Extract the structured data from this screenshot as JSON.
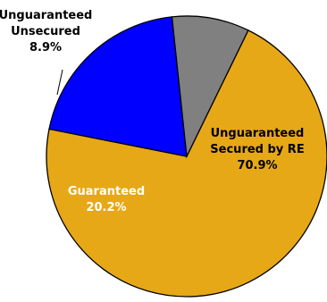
{
  "chart_data": {
    "type": "pie",
    "title": "",
    "slices": [
      {
        "label_lines": [
          "Unguaranteed",
          "Secured by RE"
        ],
        "value": 70.9,
        "value_label": "70.9%",
        "color": "#e6a817",
        "text_color": "#000000"
      },
      {
        "label_lines": [
          "Guaranteed"
        ],
        "value": 20.2,
        "value_label": "20.2%",
        "color": "#0000ff",
        "text_color": "#ffffff"
      },
      {
        "label_lines": [
          "Unguaranteed",
          "Unsecured"
        ],
        "value": 8.9,
        "value_label": "8.9%",
        "color": "#808080",
        "text_color": "#000000"
      }
    ],
    "legend": "none",
    "start_angle_deg": 296,
    "direction": "clockwise"
  }
}
